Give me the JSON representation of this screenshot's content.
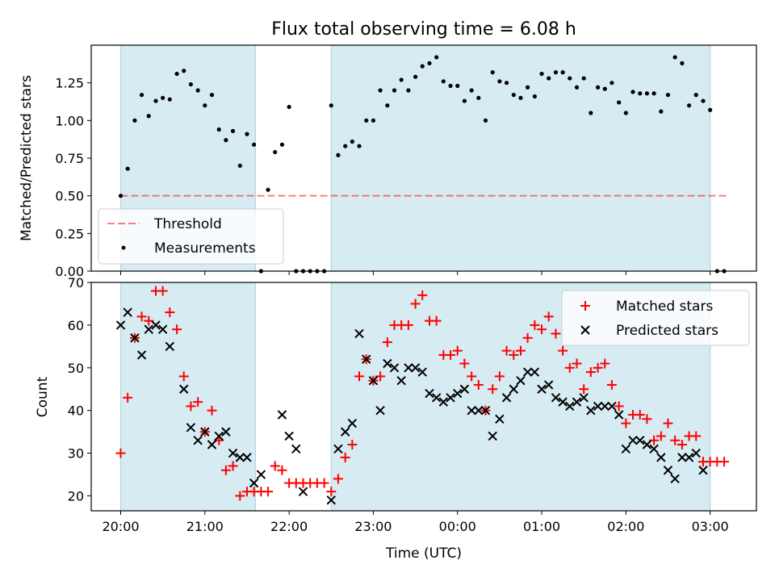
{
  "figure": {
    "title": "Flux total observing time = 6.08 h"
  },
  "colors": {
    "shade": "#add8e6",
    "threshold": "#ff0000",
    "measurement": "#000000",
    "matched": "#ff0000",
    "predicted": "#000000"
  },
  "chart_data": [
    {
      "type": "scatter",
      "panel": "top",
      "title": "Flux total observing time = 6.08 h",
      "xlabel": "",
      "ylabel": "Matched/Predicted stars",
      "x_unit": "hours since 20:00 UTC",
      "xlim": [
        -0.35,
        7.55
      ],
      "ylim": [
        0.0,
        1.5
      ],
      "yticks": [
        0.0,
        0.25,
        0.5,
        0.75,
        1.0,
        1.25
      ],
      "ytick_labels": [
        "0.00",
        "0.25",
        "0.50",
        "0.75",
        "1.00",
        "1.25"
      ],
      "legend": {
        "position": "lower left",
        "entries": [
          "Threshold",
          "Measurements"
        ]
      },
      "shaded_intervals": [
        [
          0.0,
          1.6
        ],
        [
          2.5,
          7.0
        ]
      ],
      "threshold": {
        "name": "Threshold",
        "value": 0.5,
        "x_range": [
          0.0,
          7.2
        ]
      },
      "series": [
        {
          "name": "Measurements",
          "x": [
            0.0,
            0.083,
            0.167,
            0.25,
            0.333,
            0.417,
            0.5,
            0.583,
            0.667,
            0.75,
            0.833,
            0.917,
            1.0,
            1.083,
            1.167,
            1.25,
            1.333,
            1.417,
            1.5,
            1.583,
            1.667,
            1.75,
            1.833,
            1.917,
            2.0,
            2.083,
            2.167,
            2.25,
            2.333,
            2.417,
            2.5,
            2.583,
            2.667,
            2.75,
            2.833,
            2.917,
            3.0,
            3.083,
            3.167,
            3.25,
            3.333,
            3.417,
            3.5,
            3.583,
            3.667,
            3.75,
            3.833,
            3.917,
            4.0,
            4.083,
            4.167,
            4.25,
            4.333,
            4.417,
            4.5,
            4.583,
            4.667,
            4.75,
            4.833,
            4.917,
            5.0,
            5.083,
            5.167,
            5.25,
            5.333,
            5.417,
            5.5,
            5.583,
            5.667,
            5.75,
            5.833,
            5.917,
            6.0,
            6.083,
            6.167,
            6.25,
            6.333,
            6.417,
            6.5,
            6.583,
            6.667,
            6.75,
            6.833,
            6.917,
            7.0,
            7.083,
            7.167
          ],
          "y": [
            0.5,
            0.68,
            1.0,
            1.17,
            1.03,
            1.13,
            1.15,
            1.14,
            1.31,
            1.33,
            1.24,
            1.2,
            1.1,
            1.17,
            0.94,
            0.87,
            0.93,
            0.7,
            0.91,
            0.84,
            0.0,
            0.54,
            0.79,
            0.84,
            1.09,
            0.0,
            0.0,
            0.0,
            0.0,
            0.0,
            1.1,
            0.77,
            0.83,
            0.86,
            0.83,
            1.0,
            1.0,
            1.2,
            1.1,
            1.2,
            1.27,
            1.2,
            1.29,
            1.36,
            1.38,
            1.42,
            1.26,
            1.23,
            1.23,
            1.13,
            1.2,
            1.15,
            1.0,
            1.32,
            1.26,
            1.25,
            1.17,
            1.15,
            1.22,
            1.16,
            1.31,
            1.28,
            1.32,
            1.32,
            1.28,
            1.22,
            1.28,
            1.05,
            1.22,
            1.21,
            1.25,
            1.12,
            1.05,
            1.19,
            1.18,
            1.18,
            1.18,
            1.06,
            1.17,
            1.42,
            1.38,
            1.1,
            1.17,
            1.13,
            1.07,
            0.0,
            0.0
          ]
        }
      ]
    },
    {
      "type": "scatter",
      "panel": "bottom",
      "title": "",
      "xlabel": "Time (UTC)",
      "ylabel": "Count",
      "x_unit": "hours since 20:00 UTC",
      "xlim": [
        -0.35,
        7.55
      ],
      "ylim": [
        16.5,
        70.0
      ],
      "yticks": [
        20,
        30,
        40,
        50,
        60,
        70
      ],
      "xticks": [
        0,
        1,
        2,
        3,
        4,
        5,
        6,
        7
      ],
      "xtick_labels": [
        "20:00",
        "21:00",
        "22:00",
        "23:00",
        "00:00",
        "01:00",
        "02:00",
        "03:00"
      ],
      "legend": {
        "position": "top-right",
        "entries": [
          "Matched stars",
          "Predicted stars"
        ]
      },
      "shaded_intervals": [
        [
          0.0,
          1.6
        ],
        [
          2.5,
          7.0
        ]
      ],
      "series": [
        {
          "name": "Matched stars",
          "marker": "plus",
          "x": [
            0.0,
            0.083,
            0.167,
            0.25,
            0.333,
            0.417,
            0.5,
            0.583,
            0.667,
            0.75,
            0.833,
            0.917,
            1.0,
            1.083,
            1.167,
            1.25,
            1.333,
            1.417,
            1.5,
            1.583,
            1.667,
            1.75,
            1.833,
            1.917,
            2.0,
            2.083,
            2.167,
            2.25,
            2.333,
            2.417,
            2.5,
            2.583,
            2.667,
            2.75,
            2.833,
            2.917,
            3.0,
            3.083,
            3.167,
            3.25,
            3.333,
            3.417,
            3.5,
            3.583,
            3.667,
            3.75,
            3.833,
            3.917,
            4.0,
            4.083,
            4.167,
            4.25,
            4.333,
            4.417,
            4.5,
            4.583,
            4.667,
            4.75,
            4.833,
            4.917,
            5.0,
            5.083,
            5.167,
            5.25,
            5.333,
            5.417,
            5.5,
            5.583,
            5.667,
            5.75,
            5.833,
            5.917,
            6.0,
            6.083,
            6.167,
            6.25,
            6.333,
            6.417,
            6.5,
            6.583,
            6.667,
            6.75,
            6.833,
            6.917,
            7.0,
            7.083,
            7.167
          ],
          "y": [
            30,
            43,
            57,
            62,
            61,
            68,
            68,
            63,
            59,
            48,
            41,
            42,
            35,
            40,
            33,
            26,
            27,
            20,
            21,
            21,
            21,
            21,
            27,
            26,
            23,
            23,
            23,
            23,
            23,
            23,
            21,
            24,
            29,
            32,
            48,
            52,
            47,
            48,
            56,
            60,
            60,
            60,
            65,
            67,
            61,
            61,
            53,
            53,
            54,
            51,
            48,
            46,
            40,
            45,
            48,
            54,
            53,
            54,
            57,
            60,
            59,
            62,
            58,
            54,
            50,
            51,
            45,
            49,
            50,
            51,
            46,
            41,
            37,
            39,
            39,
            38,
            33,
            34,
            37,
            33,
            32,
            34,
            34,
            28,
            28,
            28,
            28
          ]
        },
        {
          "name": "Predicted stars",
          "marker": "x",
          "x": [
            0.0,
            0.083,
            0.167,
            0.25,
            0.333,
            0.417,
            0.5,
            0.583,
            0.75,
            0.833,
            0.917,
            1.0,
            1.083,
            1.167,
            1.25,
            1.333,
            1.417,
            1.5,
            1.583,
            1.667,
            1.75,
            1.833,
            1.917,
            2.0,
            2.083,
            2.167,
            2.25,
            2.333,
            2.417,
            2.5,
            2.583,
            2.667,
            2.75,
            2.833,
            2.917,
            3.0,
            3.083,
            3.167,
            3.25,
            3.333,
            3.417,
            3.5,
            3.583,
            3.667,
            3.75,
            3.833,
            3.917,
            4.0,
            4.083,
            4.167,
            4.25,
            4.333,
            4.417,
            4.5,
            4.583,
            4.667,
            4.75,
            4.833,
            4.917,
            5.0,
            5.083,
            5.167,
            5.25,
            5.333,
            5.417,
            5.5,
            5.583,
            5.667,
            5.75,
            5.833,
            5.917,
            6.0,
            6.083,
            6.167,
            6.25,
            6.333,
            6.417,
            6.5,
            6.583,
            6.667,
            6.75,
            6.833,
            6.917,
            7.0
          ],
          "y": [
            60,
            63,
            57,
            53,
            59,
            60,
            59,
            55,
            45,
            36,
            33,
            35,
            32,
            34,
            35,
            30,
            29,
            29,
            23,
            25,
            null,
            null,
            39,
            34,
            31,
            21,
            null,
            null,
            null,
            19,
            31,
            35,
            37,
            58,
            52,
            47,
            40,
            51,
            50,
            47,
            50,
            50,
            49,
            44,
            43,
            42,
            43,
            44,
            45,
            40,
            40,
            40,
            34,
            38,
            43,
            45,
            47,
            49,
            49,
            45,
            46,
            43,
            42,
            41,
            42,
            43,
            40,
            41,
            41,
            41,
            39,
            31,
            33,
            33,
            32,
            31,
            29,
            26,
            24,
            29,
            29,
            30,
            26,
            null
          ]
        }
      ]
    }
  ]
}
